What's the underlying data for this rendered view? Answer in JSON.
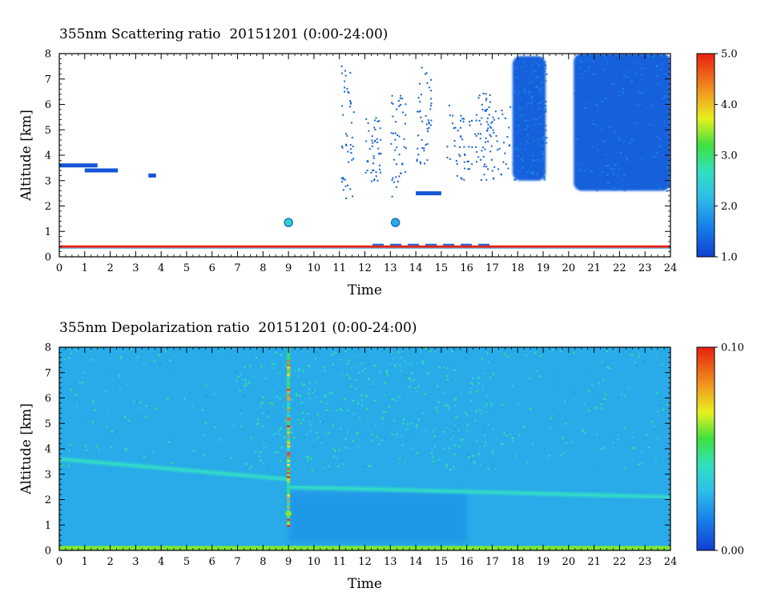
{
  "charts": [
    {
      "title": "355nm Scattering ratio  20151201 (0:00-24:00)",
      "xlabel": "Time",
      "ylabel": "Altitude [km]",
      "colorbar_labels": [
        "5.0",
        "4.0",
        "3.0",
        "2.0",
        "1.0"
      ]
    },
    {
      "title": "355nm Depolarization ratio  20151201 (0:00-24:00)",
      "xlabel": "Time",
      "ylabel": "Altitude [km]",
      "colorbar_labels": [
        "0.10",
        "0.00"
      ]
    }
  ],
  "chart_data": [
    {
      "type": "heatmap",
      "title": "355nm Scattering ratio  20151201 (0:00-24:00)",
      "xlabel": "Time",
      "ylabel": "Altitude [km]",
      "xlim": [
        0,
        24
      ],
      "ylim": [
        0,
        8
      ],
      "x_ticks": [
        0,
        1,
        2,
        3,
        4,
        5,
        6,
        7,
        8,
        9,
        10,
        11,
        12,
        13,
        14,
        15,
        16,
        17,
        18,
        19,
        20,
        21,
        22,
        23,
        24
      ],
      "y_ticks": [
        0,
        1,
        2,
        3,
        4,
        5,
        6,
        7,
        8
      ],
      "colorbar": {
        "min": 1.0,
        "max": 5.0,
        "ticks": [
          1.0,
          2.0,
          3.0,
          4.0,
          5.0
        ]
      },
      "features": [
        {
          "desc": "cloud layer",
          "t_start": 0.0,
          "t_end": 1.5,
          "alt": 3.6,
          "value": 1.2
        },
        {
          "desc": "cloud layer",
          "t_start": 1.0,
          "t_end": 2.3,
          "alt": 3.4,
          "value": 1.2
        },
        {
          "desc": "cloud layer",
          "t_start": 3.5,
          "t_end": 3.8,
          "alt": 3.2,
          "value": 1.2
        },
        {
          "desc": "aerosol spot",
          "t": 9.0,
          "alt": 1.35,
          "value": 2.5
        },
        {
          "desc": "aerosol spot",
          "t": 13.2,
          "alt": 1.35,
          "value": 2.0
        },
        {
          "desc": "layer",
          "t_start": 14.0,
          "t_end": 15.0,
          "alt": 2.5,
          "value": 1.2
        },
        {
          "desc": "cloud",
          "t_start": 17.8,
          "t_end": 19.1,
          "alt_min": 3.0,
          "alt_max": 7.9,
          "value": 1.3
        },
        {
          "desc": "cloud",
          "t_start": 20.2,
          "t_end": 24.0,
          "alt_min": 2.6,
          "alt_max": 8.0,
          "value": 1.3
        },
        {
          "desc": "near-surface line",
          "t_start": 0.0,
          "t_end": 24.0,
          "alt": 0.4,
          "value": 5.0
        }
      ]
    },
    {
      "type": "heatmap",
      "title": "355nm Depolarization ratio  20151201 (0:00-24:00)",
      "xlabel": "Time",
      "ylabel": "Altitude [km]",
      "xlim": [
        0,
        24
      ],
      "ylim": [
        0,
        8
      ],
      "x_ticks": [
        0,
        1,
        2,
        3,
        4,
        5,
        6,
        7,
        8,
        9,
        10,
        11,
        12,
        13,
        14,
        15,
        16,
        17,
        18,
        19,
        20,
        21,
        22,
        23,
        24
      ],
      "y_ticks": [
        0,
        1,
        2,
        3,
        4,
        5,
        6,
        7,
        8
      ],
      "colorbar": {
        "min": 0.0,
        "max": 0.1,
        "ticks": [
          0.0,
          0.1
        ]
      },
      "features": [
        {
          "desc": "background",
          "t_start": 0.0,
          "t_end": 24.0,
          "alt_min": 0.0,
          "alt_max": 8.0,
          "value": 0.025
        },
        {
          "desc": "layer band",
          "t_start": 0.0,
          "t_end": 9.0,
          "alt_start": 3.6,
          "alt_end": 2.8,
          "value": 0.04
        },
        {
          "desc": "layer band",
          "t_start": 9.0,
          "t_end": 24.0,
          "alt_start": 2.5,
          "alt_end": 2.1,
          "value": 0.04
        },
        {
          "desc": "vertical spike",
          "t": 9.0,
          "alt_min": 1.0,
          "alt_max": 8.0,
          "value": 0.1
        },
        {
          "desc": "surface layer",
          "t_start": 0.0,
          "t_end": 24.0,
          "alt": 0.1,
          "value": 0.06
        }
      ]
    }
  ]
}
